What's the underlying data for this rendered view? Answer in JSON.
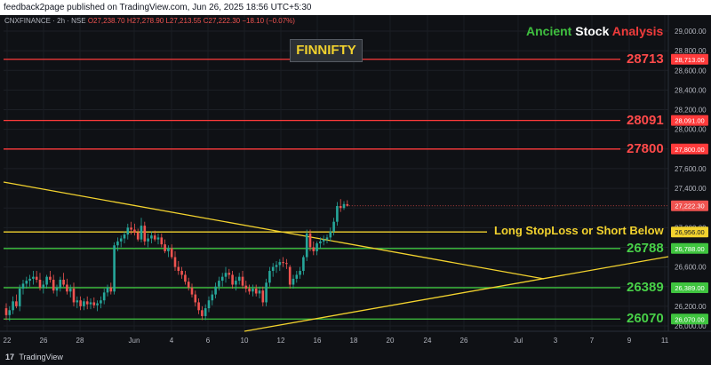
{
  "publish_bar": {
    "text": "feedback2page published on TradingView.com, Jun 26, 2025 18:56 UTC+5:30"
  },
  "header": {
    "symbol": "CNXFINANCE · 2h · NSE",
    "open": "O27,238.70",
    "high": "H27,278.90",
    "low": "L27,213.55",
    "close": "C27,222.30",
    "change": "−18.10 (−0.07%)"
  },
  "brand": {
    "word1": "Ancient",
    "word2": "Stock",
    "word3": "Analysis"
  },
  "title": "FINNIFTY",
  "annotation": "Long StopLoss or Short Below",
  "footer": {
    "logo": "17",
    "text": "TradingView"
  },
  "colors": {
    "background": "#0f1115",
    "up": "#26a69a",
    "down": "#ef5350",
    "resistance": "#ff3b3b",
    "support": "#3fc43f",
    "trendline": "#f2d22e"
  },
  "chart_data": {
    "type": "candlestick",
    "symbol": "CNXFINANCE",
    "interval": "2h",
    "exchange": "NSE",
    "ylim": [
      25960,
      29050
    ],
    "y_ticks": [
      "29,000.00",
      "28,800.00",
      "28,600.00",
      "28,400.00",
      "28,200.00",
      "28,000.00",
      "27,800.00",
      "27,600.00",
      "27,400.00",
      "27,200.00",
      "27,000.00",
      "26,800.00",
      "26,600.00",
      "26,400.00",
      "26,200.00",
      "26,000.00"
    ],
    "x_ticks": [
      "22",
      "26",
      "28",
      "Jun",
      "4",
      "6",
      "10",
      "12",
      "16",
      "18",
      "20",
      "24",
      "26",
      "Jul",
      "3",
      "7",
      "9",
      "11"
    ],
    "current_price": {
      "value": 27222.3,
      "label": "27,222.30"
    },
    "levels": [
      {
        "kind": "resistance",
        "value": 28713,
        "label": "28713",
        "axis_label": "28,713.00"
      },
      {
        "kind": "resistance",
        "value": 28091,
        "label": "28091",
        "axis_label": "28,091.00"
      },
      {
        "kind": "resistance",
        "value": 27800,
        "label": "27800",
        "axis_label": "27,800.00"
      },
      {
        "kind": "stoploss",
        "value": 26956,
        "label": "Long StopLoss or Short Below",
        "axis_label": "26,956.00"
      },
      {
        "kind": "support",
        "value": 26788,
        "label": "26788",
        "axis_label": "26,788.00"
      },
      {
        "kind": "support",
        "value": 26389,
        "label": "26389",
        "axis_label": "26,389.00"
      },
      {
        "kind": "support",
        "value": 26070,
        "label": "26070",
        "axis_label": "26,070.00"
      }
    ],
    "trendlines": [
      {
        "name": "descending",
        "start": {
          "bar": 0,
          "price": 27480
        },
        "end": {
          "bar": 152,
          "price": 26550
        }
      },
      {
        "name": "ascending",
        "start": {
          "bar": 68,
          "price": 25970
        },
        "end": {
          "bar": 188,
          "price": 26740
        }
      }
    ],
    "candles": [
      [
        26180,
        26230,
        26060,
        26110
      ],
      [
        26110,
        26200,
        26050,
        26160
      ],
      [
        26160,
        26300,
        26120,
        26250
      ],
      [
        26250,
        26320,
        26180,
        26200
      ],
      [
        26200,
        26420,
        26150,
        26380
      ],
      [
        26380,
        26470,
        26320,
        26430
      ],
      [
        26430,
        26500,
        26380,
        26460
      ],
      [
        26460,
        26520,
        26400,
        26480
      ],
      [
        26480,
        26560,
        26420,
        26500
      ],
      [
        26500,
        26560,
        26440,
        26470
      ],
      [
        26470,
        26540,
        26360,
        26390
      ],
      [
        26390,
        26460,
        26330,
        26420
      ],
      [
        26420,
        26520,
        26380,
        26500
      ],
      [
        26500,
        26560,
        26440,
        26470
      ],
      [
        26470,
        26520,
        26330,
        26360
      ],
      [
        26360,
        26420,
        26300,
        26390
      ],
      [
        26390,
        26500,
        26350,
        26470
      ],
      [
        26470,
        26540,
        26400,
        26420
      ],
      [
        26420,
        26480,
        26320,
        26350
      ],
      [
        26350,
        26420,
        26290,
        26380
      ],
      [
        26380,
        26440,
        26200,
        26240
      ],
      [
        26240,
        26300,
        26180,
        26260
      ],
      [
        26260,
        26300,
        26160,
        26200
      ],
      [
        26200,
        26280,
        26160,
        26250
      ],
      [
        26250,
        26300,
        26170,
        26220
      ],
      [
        26220,
        26280,
        26170,
        26240
      ],
      [
        26240,
        26290,
        26180,
        26210
      ],
      [
        26210,
        26260,
        26150,
        26230
      ],
      [
        26230,
        26300,
        26180,
        26260
      ],
      [
        26260,
        26380,
        26220,
        26340
      ],
      [
        26340,
        26420,
        26300,
        26390
      ],
      [
        26390,
        26440,
        26320,
        26350
      ],
      [
        26350,
        26850,
        26320,
        26820
      ],
      [
        26820,
        26900,
        26760,
        26860
      ],
      [
        26860,
        26920,
        26800,
        26890
      ],
      [
        26890,
        26960,
        26840,
        26930
      ],
      [
        26930,
        27040,
        26880,
        27000
      ],
      [
        27000,
        27060,
        26930,
        26980
      ],
      [
        26980,
        27040,
        26920,
        26950
      ],
      [
        26950,
        26990,
        26860,
        26880
      ],
      [
        26880,
        27100,
        26850,
        27020
      ],
      [
        27020,
        27060,
        26820,
        26860
      ],
      [
        26860,
        26940,
        26800,
        26890
      ],
      [
        26890,
        26960,
        26840,
        26920
      ],
      [
        26920,
        26970,
        26860,
        26880
      ],
      [
        26880,
        26940,
        26830,
        26900
      ],
      [
        26900,
        26940,
        26800,
        26830
      ],
      [
        26830,
        26880,
        26740,
        26760
      ],
      [
        26760,
        26820,
        26700,
        26790
      ],
      [
        26790,
        26830,
        26680,
        26700
      ],
      [
        26700,
        26760,
        26560,
        26600
      ],
      [
        26600,
        26660,
        26520,
        26560
      ],
      [
        26560,
        26600,
        26480,
        26520
      ],
      [
        26520,
        26560,
        26420,
        26450
      ],
      [
        26450,
        26490,
        26360,
        26390
      ],
      [
        26390,
        26430,
        26290,
        26320
      ],
      [
        26320,
        26360,
        26200,
        26240
      ],
      [
        26240,
        26280,
        26120,
        26160
      ],
      [
        26160,
        26200,
        26060,
        26100
      ],
      [
        26100,
        26220,
        26060,
        26180
      ],
      [
        26180,
        26300,
        26140,
        26260
      ],
      [
        26260,
        26360,
        26210,
        26320
      ],
      [
        26320,
        26440,
        26280,
        26400
      ],
      [
        26400,
        26500,
        26360,
        26460
      ],
      [
        26460,
        26540,
        26400,
        26500
      ],
      [
        26500,
        26600,
        26440,
        26540
      ],
      [
        26540,
        26580,
        26480,
        26520
      ],
      [
        26520,
        26560,
        26380,
        26420
      ],
      [
        26420,
        26500,
        26360,
        26460
      ],
      [
        26460,
        26540,
        26420,
        26500
      ],
      [
        26500,
        26560,
        26380,
        26410
      ],
      [
        26410,
        26460,
        26340,
        26380
      ],
      [
        26380,
        26420,
        26320,
        26350
      ],
      [
        26350,
        26420,
        26300,
        26380
      ],
      [
        26380,
        26420,
        26300,
        26330
      ],
      [
        26330,
        26400,
        26280,
        26360
      ],
      [
        26360,
        26400,
        26200,
        26240
      ],
      [
        26240,
        26480,
        26200,
        26440
      ],
      [
        26440,
        26600,
        26400,
        26560
      ],
      [
        26560,
        26640,
        26500,
        26600
      ],
      [
        26600,
        26660,
        26540,
        26620
      ],
      [
        26620,
        26680,
        26560,
        26650
      ],
      [
        26650,
        26700,
        26600,
        26640
      ],
      [
        26640,
        26680,
        26580,
        26630
      ],
      [
        26600,
        26620,
        26380,
        26420
      ],
      [
        26420,
        26520,
        26380,
        26480
      ],
      [
        26480,
        26560,
        26440,
        26520
      ],
      [
        26520,
        26600,
        26480,
        26560
      ],
      [
        26560,
        26720,
        26520,
        26700
      ],
      [
        26700,
        26980,
        26660,
        26940
      ],
      [
        26940,
        26980,
        26760,
        26800
      ],
      [
        26800,
        26860,
        26720,
        26760
      ],
      [
        26760,
        26860,
        26720,
        26840
      ],
      [
        26840,
        26900,
        26790,
        26860
      ],
      [
        26860,
        26920,
        26820,
        26880
      ],
      [
        26880,
        26930,
        26840,
        26900
      ],
      [
        26900,
        27000,
        26860,
        26960
      ],
      [
        26960,
        27100,
        26920,
        27060
      ],
      [
        27060,
        27260,
        27020,
        27220
      ],
      [
        27220,
        27290,
        27160,
        27200
      ],
      [
        27200,
        27270,
        27180,
        27240
      ],
      [
        27238.7,
        27278.9,
        27213.55,
        27222.3
      ]
    ]
  }
}
